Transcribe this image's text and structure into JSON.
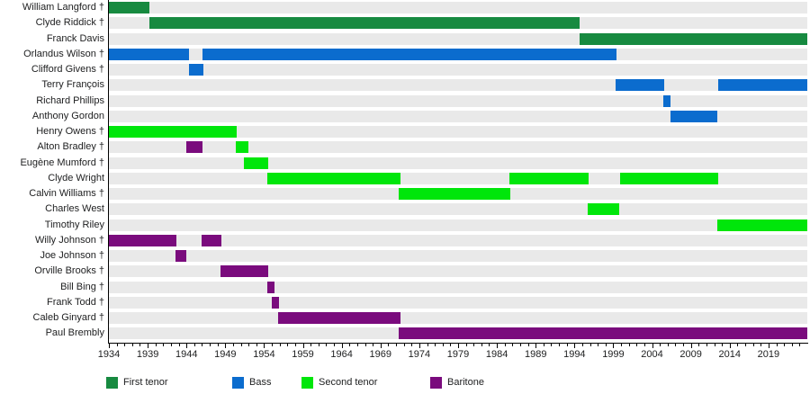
{
  "chart_data": {
    "type": "bar",
    "subtype": "horizontal-membership-timeline-gantt",
    "title": "",
    "x_axis": {
      "min": 1934,
      "max": 2024,
      "major_tick_interval": 5,
      "minor_tick_interval": 1,
      "major_tick_labels": [
        "1934",
        "1939",
        "1944",
        "1949",
        "1954",
        "1959",
        "1964",
        "1969",
        "1974",
        "1979",
        "1984",
        "1989",
        "1994",
        "1999",
        "2004",
        "2009",
        "2014",
        "2019"
      ]
    },
    "colors": {
      "row_track": "#e9e9e9",
      "axis": "#000000",
      "text": "#202122"
    },
    "legend": [
      {
        "label": "First tenor",
        "color": "#178a40"
      },
      {
        "label": "Bass",
        "color": "#0b6cce"
      },
      {
        "label": "Second tenor",
        "color": "#00e60b"
      },
      {
        "label": "Baritone",
        "color": "#7a0b7d"
      }
    ],
    "rows": [
      {
        "name": "William Langford †",
        "bars": [
          {
            "part": "First tenor",
            "start": 1934,
            "end": 1939.2
          }
        ]
      },
      {
        "name": "Clyde Riddick †",
        "bars": [
          {
            "part": "First tenor",
            "start": 1939.2,
            "end": 1994.7
          }
        ]
      },
      {
        "name": "Franck Davis",
        "bars": [
          {
            "part": "First tenor",
            "start": 1994.7,
            "end": 2024
          }
        ]
      },
      {
        "name": "Orlandus Wilson †",
        "bars": [
          {
            "part": "Bass",
            "start": 1934,
            "end": 1944.3
          },
          {
            "part": "Bass",
            "start": 1946.1,
            "end": 1999.4
          }
        ]
      },
      {
        "name": "Clifford Givens †",
        "bars": [
          {
            "part": "Bass",
            "start": 1944.3,
            "end": 1946.2
          }
        ]
      },
      {
        "name": "Terry François",
        "bars": [
          {
            "part": "Bass",
            "start": 1999.3,
            "end": 2005.6
          },
          {
            "part": "Bass",
            "start": 2012.5,
            "end": 2024
          }
        ]
      },
      {
        "name": "Richard Phillips",
        "bars": [
          {
            "part": "Bass",
            "start": 2005.4,
            "end": 2006.4
          }
        ]
      },
      {
        "name": "Anthony Gordon",
        "bars": [
          {
            "part": "Bass",
            "start": 2006.4,
            "end": 2012.4
          }
        ]
      },
      {
        "name": "Henry Owens †",
        "bars": [
          {
            "part": "Second tenor",
            "start": 1934,
            "end": 1950.5
          }
        ]
      },
      {
        "name": "Alton Bradley †",
        "bars": [
          {
            "part": "Baritone",
            "start": 1944,
            "end": 1946.1
          },
          {
            "part": "Second tenor",
            "start": 1950.3,
            "end": 1952
          }
        ]
      },
      {
        "name": "Eugène Mumford †",
        "bars": [
          {
            "part": "Second tenor",
            "start": 1951.4,
            "end": 1954.5
          }
        ]
      },
      {
        "name": "Clyde Wright",
        "bars": [
          {
            "part": "Second tenor",
            "start": 1954.4,
            "end": 1971.6
          },
          {
            "part": "Second tenor",
            "start": 1985.6,
            "end": 1995.8
          },
          {
            "part": "Second tenor",
            "start": 1999.9,
            "end": 2012.5
          }
        ]
      },
      {
        "name": "Calvin Williams †",
        "bars": [
          {
            "part": "Second tenor",
            "start": 1971.4,
            "end": 1985.7
          }
        ]
      },
      {
        "name": "Charles West",
        "bars": [
          {
            "part": "Second tenor",
            "start": 1995.7,
            "end": 1999.8
          }
        ]
      },
      {
        "name": "Timothy Riley",
        "bars": [
          {
            "part": "Second tenor",
            "start": 2012.4,
            "end": 2024
          }
        ]
      },
      {
        "name": "Willy Johnson †",
        "bars": [
          {
            "part": "Baritone",
            "start": 1934,
            "end": 1942.7
          },
          {
            "part": "Baritone",
            "start": 1946,
            "end": 1948.5
          }
        ]
      },
      {
        "name": "Joe Johnson †",
        "bars": [
          {
            "part": "Baritone",
            "start": 1942.6,
            "end": 1944
          }
        ]
      },
      {
        "name": "Orville Brooks †",
        "bars": [
          {
            "part": "Baritone",
            "start": 1948.4,
            "end": 1954.5
          }
        ]
      },
      {
        "name": "Bill Bing †",
        "bars": [
          {
            "part": "Baritone",
            "start": 1954.4,
            "end": 1955.3
          }
        ]
      },
      {
        "name": "Frank Todd †",
        "bars": [
          {
            "part": "Baritone",
            "start": 1955,
            "end": 1955.9
          }
        ]
      },
      {
        "name": "Caleb Ginyard †",
        "bars": [
          {
            "part": "Baritone",
            "start": 1955.8,
            "end": 1971.6
          }
        ]
      },
      {
        "name": "Paul Brembly",
        "bars": [
          {
            "part": "Baritone",
            "start": 1971.4,
            "end": 2024
          }
        ]
      }
    ]
  }
}
